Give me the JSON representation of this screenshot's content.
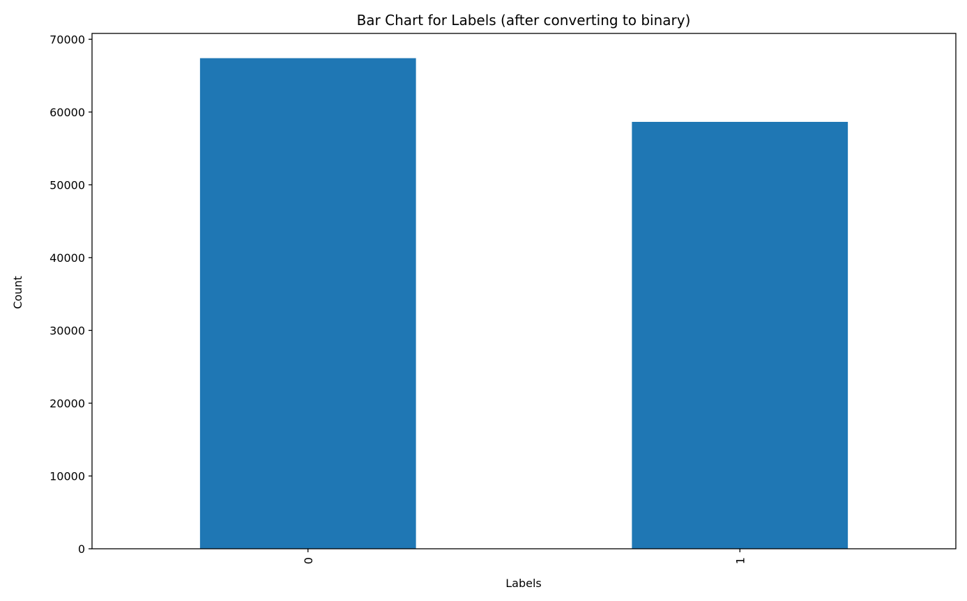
{
  "chart_data": {
    "type": "bar",
    "title": "Bar Chart for Labels (after converting to binary)",
    "xlabel": "Labels",
    "ylabel": "Count",
    "categories": [
      "0",
      "1"
    ],
    "values": [
      67400,
      58650
    ],
    "ylim": [
      0,
      70800
    ],
    "yticks": [
      0,
      10000,
      20000,
      30000,
      40000,
      50000,
      60000,
      70000
    ],
    "ytick_labels": [
      "0",
      "10000",
      "20000",
      "30000",
      "40000",
      "50000",
      "60000",
      "70000"
    ],
    "grid": false,
    "legend": "none",
    "bar_color": "#1f77b4",
    "x_tick_rotation": 90
  }
}
